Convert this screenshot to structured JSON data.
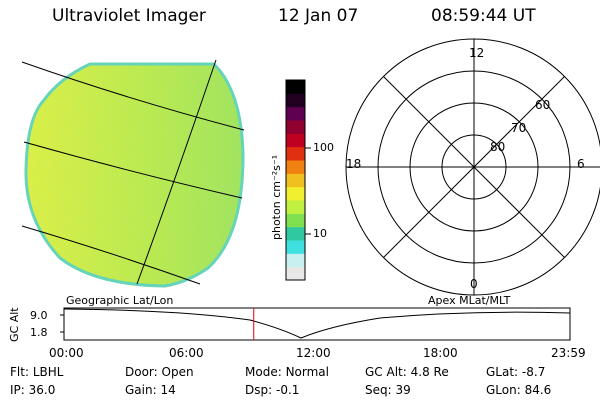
{
  "header": {
    "instrument": "Ultraviolet Imager",
    "date": "12 Jan 07",
    "time": "08:59:44 UT"
  },
  "colorbar": {
    "unit_label": "photon cm⁻²s⁻¹",
    "ticks": [
      {
        "value": 100,
        "label": "100"
      },
      {
        "value": 10,
        "label": "10"
      }
    ],
    "colors": [
      "#e8e8e8",
      "#c8f0f0",
      "#40e0e0",
      "#30c8a0",
      "#80e050",
      "#c0f040",
      "#f0f030",
      "#f0c020",
      "#f08010",
      "#e03010",
      "#c00020",
      "#900030",
      "#600050",
      "#200020",
      "#000000"
    ]
  },
  "left_image": {
    "label": "Geographic Lat/Lon",
    "fill_color": "#b8ec48",
    "edge_color": "#70d8b0"
  },
  "right_image": {
    "label": "Apex MLat/MLT",
    "mlt_labels": {
      "top": "12",
      "bottom": "0",
      "left": "18",
      "right": "6"
    },
    "mlat_labels": [
      {
        "value": 60,
        "label": "60"
      },
      {
        "value": 70,
        "label": "70"
      },
      {
        "value": 80,
        "label": "80"
      }
    ]
  },
  "altitude_plot": {
    "ylabel": "GC Alt",
    "yticks": [
      "9.0",
      "1.8"
    ],
    "xticks": [
      "00:00",
      "06:00",
      "12:00",
      "18:00",
      "23:59"
    ],
    "current_time_hours": 9.0,
    "marker_color": "#e00000"
  },
  "status": [
    [
      {
        "label": "Flt:",
        "value": "LBHL"
      },
      {
        "label": "Door:",
        "value": "Open"
      },
      {
        "label": "Mode:",
        "value": "Normal"
      },
      {
        "label": "GC Alt:",
        "value": "4.8 Re"
      },
      {
        "label": "GLat:",
        "value": "-8.7"
      }
    ],
    [
      {
        "label": "IP:",
        "value": "36.0"
      },
      {
        "label": "Gain:",
        "value": "14"
      },
      {
        "label": "Dsp:",
        "value": "-0.1"
      },
      {
        "label": "Seq:",
        "value": "39"
      },
      {
        "label": "GLon:",
        "value": "84.6"
      }
    ]
  ]
}
